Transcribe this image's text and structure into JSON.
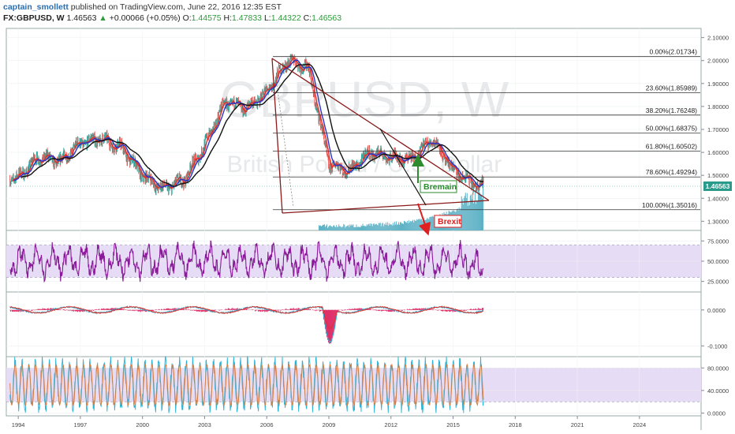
{
  "header": {
    "author": "captain_smollett",
    "published": "published on TradingView.com, June 22, 2016 12:35 EST",
    "symbol": "FX:GBPUSD, W",
    "last": "1.46563",
    "change": "+0.00066 (+0.05%)",
    "o_label": "O:",
    "o_value": "1.44575",
    "h_label": "H:",
    "h_value": "1.47833",
    "l_label": "L:",
    "l_value": "1.44322",
    "c_label": "C:",
    "c_value": "1.46563"
  },
  "colors": {
    "price_up": "#26a69a",
    "price_down": "#ef5350",
    "ma_fast": "#e0302a",
    "ma_mid": "#2a35c8",
    "ma_slow": "#111111",
    "fib": "#333333",
    "triangle": "#8b1a1a",
    "rsi": "#8b1a9a",
    "rsi_band": "#e6dcf5",
    "macd_line": "#2bb3d6",
    "macd_signal": "#e0302a",
    "macd_hist": "#e0306a",
    "stoch_k": "#2bb3d6",
    "stoch_d": "#e27a3a",
    "volume": "#5fb2c6",
    "bremain": "#2e8b2e",
    "brexit": "#e02020",
    "last_badge": "#2a9a8a"
  },
  "watermark": {
    "symbol": "GBPUSD, W",
    "name": "British Pound / U.S. Dollar"
  },
  "annotations": {
    "bremain": "Bremain",
    "brexit": "Brexit"
  },
  "chart_data": [
    {
      "type": "line",
      "title": "FX:GBPUSD, W",
      "x": [
        "1994",
        "1995",
        "1996",
        "1997",
        "1998",
        "1999",
        "2000",
        "2001",
        "2002",
        "2003",
        "2004",
        "2005",
        "2006",
        "2007",
        "2008",
        "2009",
        "2010",
        "2011",
        "2012",
        "2013",
        "2014",
        "2015",
        "2016"
      ],
      "series": [
        {
          "name": "GBPUSD",
          "values": [
            1.49,
            1.58,
            1.56,
            1.64,
            1.66,
            1.62,
            1.5,
            1.44,
            1.48,
            1.63,
            1.82,
            1.79,
            1.86,
            2.0,
            1.97,
            1.55,
            1.52,
            1.6,
            1.58,
            1.57,
            1.66,
            1.52,
            1.46
          ]
        }
      ],
      "y_ticks": [
        "2.10000",
        "2.00000",
        "1.90000",
        "1.80000",
        "1.70000",
        "1.60000",
        "1.50000",
        "1.40000",
        "1.30000"
      ],
      "ylim": [
        1.26,
        2.14
      ],
      "last_value": "1.46563",
      "fib_levels": [
        {
          "label": "0.00%(2.01734)",
          "value": 2.01734
        },
        {
          "label": "23.60%(1.85989)",
          "value": 1.85989
        },
        {
          "label": "38.20%(1.76248)",
          "value": 1.76248
        },
        {
          "label": "50.00%(1.68375)",
          "value": 1.68375
        },
        {
          "label": "61.80%(1.60502)",
          "value": 1.60502
        },
        {
          "label": "78.60%(1.49294)",
          "value": 1.49294
        },
        {
          "label": "100.00%(1.35016)",
          "value": 1.35016
        }
      ]
    },
    {
      "type": "line",
      "y_ticks": [
        "75.0000",
        "50.0000",
        "25.0000"
      ],
      "ylim": [
        12,
        88
      ],
      "band": [
        30,
        70
      ]
    },
    {
      "type": "line",
      "y_ticks": [
        "0.0000",
        "-0.1000"
      ],
      "ylim": [
        -0.13,
        0.05
      ]
    },
    {
      "type": "line",
      "y_ticks": [
        "80.0000",
        "40.0000",
        "0.0000"
      ],
      "ylim": [
        -5,
        100
      ],
      "band": [
        20,
        80
      ]
    }
  ],
  "x_axis": {
    "ticks": [
      "1994",
      "1997",
      "2000",
      "2003",
      "2006",
      "2009",
      "2012",
      "2015",
      "2018",
      "2021",
      "2024"
    ]
  }
}
